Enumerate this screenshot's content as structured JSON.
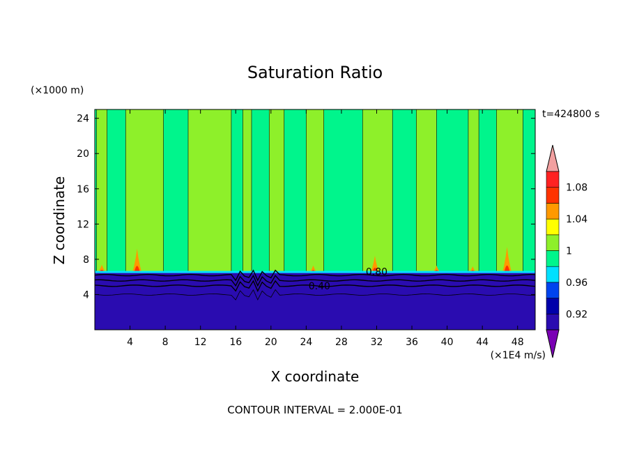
{
  "chart_data": {
    "type": "heatmap",
    "title": "Saturation Ratio",
    "xlabel": "X coordinate",
    "ylabel": "Z coordinate",
    "x_units": "(×1E4 m/s)",
    "y_units": "(×1000 m)",
    "time_label": "t=424800 s",
    "footer": "CONTOUR INTERVAL = 2.000E-01",
    "xlim": [
      0,
      50
    ],
    "ylim": [
      0,
      25
    ],
    "x_ticks": [
      4,
      8,
      12,
      16,
      20,
      24,
      28,
      32,
      36,
      40,
      44,
      48
    ],
    "y_ticks": [
      4,
      8,
      12,
      16,
      20,
      24
    ],
    "colorbar": {
      "levels": [
        0.9,
        0.92,
        0.94,
        0.96,
        0.98,
        1.0,
        1.02,
        1.04,
        1.06,
        1.08,
        1.1
      ],
      "colors": [
        "#7a00b4",
        "#2a0cb0",
        "#0000aa",
        "#0044ee",
        "#00e0ff",
        "#00f58c",
        "#8ef02a",
        "#ffff00",
        "#ff9900",
        "#ff3300",
        "#ff2222",
        "#f2a0a0"
      ],
      "tick_labels": [
        "0.92",
        "0.96",
        "1",
        "1.04",
        "1.08"
      ],
      "tick_values": [
        0.92,
        0.96,
        1.0,
        1.04,
        1.08
      ]
    },
    "contour_labels": [
      {
        "text": "0.40",
        "x": 25.5,
        "y": 5.0
      },
      {
        "text": "0.80",
        "x": 32.0,
        "y": 6.6
      }
    ],
    "regions": {
      "base_value_upper": 0.99,
      "base_value_lower": 0.9,
      "interface_height": 6.6,
      "green_bands": [
        {
          "x0": 0.2,
          "x1": 1.4
        },
        {
          "x0": 3.5,
          "x1": 7.8
        },
        {
          "x0": 10.6,
          "x1": 15.5
        },
        {
          "x0": 16.8,
          "x1": 17.8
        },
        {
          "x0": 19.8,
          "x1": 21.5
        },
        {
          "x0": 24.0,
          "x1": 26.0
        },
        {
          "x0": 30.4,
          "x1": 33.8
        },
        {
          "x0": 36.5,
          "x1": 38.8
        },
        {
          "x0": 42.4,
          "x1": 43.6
        },
        {
          "x0": 45.6,
          "x1": 48.6
        }
      ],
      "plumes": [
        {
          "x": 4.8,
          "h": 9.2,
          "w": 1.0
        },
        {
          "x": 31.8,
          "h": 8.4,
          "w": 0.9
        },
        {
          "x": 46.8,
          "h": 9.4,
          "w": 1.0
        },
        {
          "x": 0.8,
          "h": 7.4,
          "w": 0.8
        },
        {
          "x": 24.8,
          "h": 7.3,
          "w": 0.7
        },
        {
          "x": 38.8,
          "h": 7.3,
          "w": 0.7
        },
        {
          "x": 42.9,
          "h": 7.2,
          "w": 0.7
        }
      ]
    }
  }
}
